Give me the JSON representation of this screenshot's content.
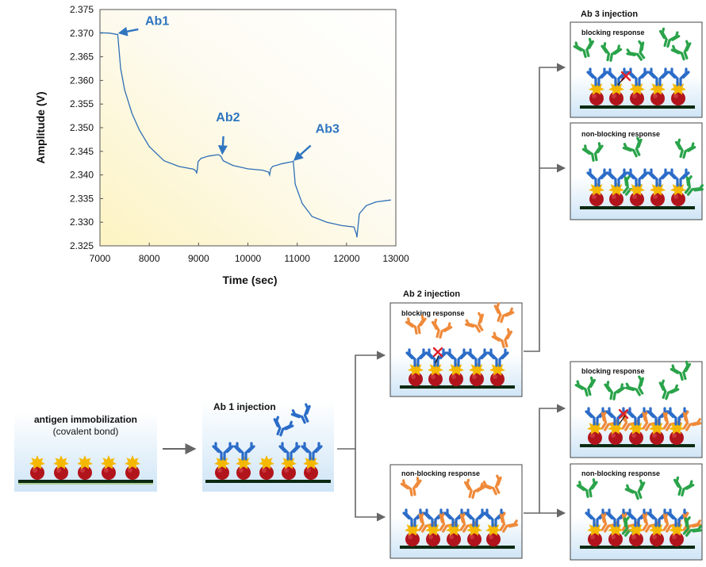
{
  "chart_data": {
    "type": "line",
    "xlabel": "Time (sec)",
    "ylabel": "Amplitude (V)",
    "xlim": [
      7000,
      13000
    ],
    "ylim": [
      2.325,
      2.375
    ],
    "xticks": [
      "7000",
      "8000",
      "9000",
      "10000",
      "11000",
      "12000",
      "13000"
    ],
    "yticks": [
      "2.325",
      "2.330",
      "2.335",
      "2.340",
      "2.345",
      "2.350",
      "2.355",
      "2.360",
      "2.365",
      "2.370",
      "2.375"
    ],
    "annotations": [
      {
        "text": "Ab1",
        "x": 7370,
        "y": 2.3697
      },
      {
        "text": "Ab2",
        "x": 9450,
        "y": 2.3443
      },
      {
        "text": "Ab3",
        "x": 10920,
        "y": 2.3429
      }
    ],
    "series": [
      {
        "x": [
          7000,
          7200,
          7360,
          7420,
          7500,
          7650,
          7800,
          8000,
          8300,
          8600,
          8900,
          8950,
          8960,
          8975,
          8990,
          9050,
          9200,
          9400,
          9450,
          9500,
          9700,
          10000,
          10300,
          10420,
          10440,
          10460,
          10500,
          10700,
          10900,
          10920,
          10960,
          11100,
          11300,
          11600,
          11900,
          12150,
          12200,
          12210,
          12260,
          12400,
          12600,
          12900
        ],
        "y": [
          2.3701,
          2.37,
          2.3697,
          2.3625,
          2.358,
          2.353,
          2.3495,
          2.346,
          2.343,
          2.3418,
          2.3412,
          2.3408,
          2.3403,
          2.3412,
          2.3428,
          2.3435,
          2.344,
          2.3443,
          2.344,
          2.343,
          2.342,
          2.3413,
          2.341,
          2.3406,
          2.34,
          2.3412,
          2.3418,
          2.3424,
          2.3428,
          2.3429,
          2.338,
          2.334,
          2.3312,
          2.33,
          2.3293,
          2.329,
          2.3275,
          2.3268,
          2.3318,
          2.3335,
          2.3343,
          2.3347
        ]
      }
    ]
  },
  "diagram": {
    "panel1": {
      "title": "antigen immobilization",
      "subtitle": "(covalent bond)"
    },
    "panel2": {
      "title": "Ab 1 injection"
    },
    "ab2": {
      "heading": "Ab 2 injection",
      "blocking": "blocking response",
      "nonblocking": "non-blocking response"
    },
    "ab3": {
      "heading": "Ab 3 injection",
      "blocking": "blocking response",
      "nonblocking": "non-blocking response"
    },
    "ab3_lower": {
      "blocking": "blocking response",
      "nonblocking": "non-blocking response"
    }
  },
  "colors": {
    "line": "#2f6fb5",
    "label": "#2f75c0",
    "ab1": "#2b6cc8",
    "ab2": "#ef8a3a",
    "ab3": "#2aa34a",
    "antigen": "#b2141c",
    "epitope": "#f5b800",
    "surface": "#0b2a12",
    "arrow": "#666666"
  }
}
